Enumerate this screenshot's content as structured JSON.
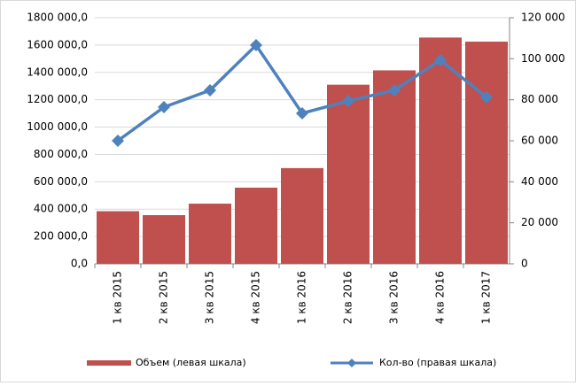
{
  "chart_data": {
    "type": "bar-line",
    "categories": [
      "1 кв 2015",
      "2 кв 2015",
      "3 кв 2015",
      "4 кв 2015",
      "1 кв 2016",
      "2 кв 2016",
      "3 кв 2016",
      "4 кв 2016",
      "1 кв 2017"
    ],
    "series": [
      {
        "name": "Объем (левая шкала)",
        "color": "#c0504d",
        "type": "bar",
        "values": [
          385000,
          356000,
          440000,
          557000,
          700000,
          1310000,
          1415000,
          1655000,
          1625000
        ]
      },
      {
        "name": "Кол-во (правая шкала)",
        "color": "#4f81bd",
        "type": "line",
        "axis": "y2",
        "values": [
          60000,
          76400,
          84600,
          106600,
          73400,
          79400,
          84600,
          99300,
          81200
        ]
      }
    ],
    "ylim": [
      0,
      1800000
    ],
    "yticks": [
      {
        "value": 0,
        "label": "0,0"
      },
      {
        "value": 200000,
        "label": "200 000,0"
      },
      {
        "value": 400000,
        "label": "400 000,0"
      },
      {
        "value": 600000,
        "label": "600 000,0"
      },
      {
        "value": 800000,
        "label": "800 000,0"
      },
      {
        "value": 1000000,
        "label": "1000 000,0"
      },
      {
        "value": 1200000,
        "label": "1200 000,0"
      },
      {
        "value": 1400000,
        "label": "1400 000,0"
      },
      {
        "value": 1600000,
        "label": "1600 000,0"
      },
      {
        "value": 1800000,
        "label": "1800 000,0"
      }
    ],
    "y2lim": [
      0,
      120000
    ],
    "y2ticks": [
      0,
      {
        "value": 20000,
        "label": "20 000"
      },
      {
        "value": 40000,
        "label": "40 000"
      },
      {
        "value": 60000,
        "label": "60 000"
      },
      {
        "value": 80000,
        "label": "80 000"
      },
      {
        "value": 100000,
        "label": "100 000"
      },
      {
        "value": 120000,
        "label": "120 000"
      }
    ],
    "grid": true,
    "legend": "bottom"
  }
}
